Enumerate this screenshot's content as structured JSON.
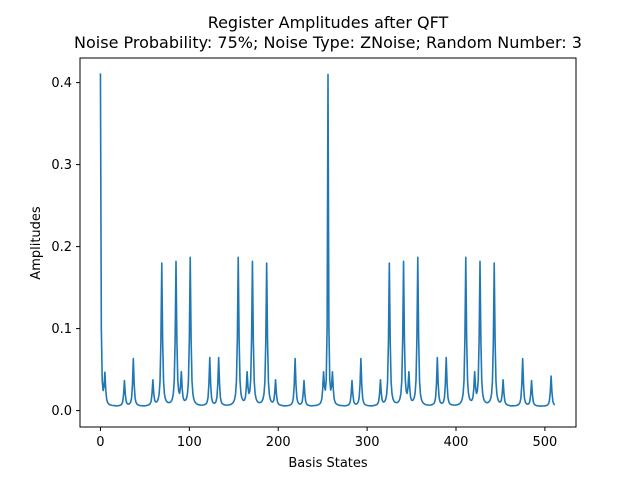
{
  "chart_data": {
    "type": "line",
    "title": "Register Amplitudes after QFT",
    "subtitle": "Noise Probability: 75%; Noise Type: ZNoise; Random Number: 3",
    "xlabel": "Basis States",
    "ylabel": "Amplitudes",
    "xlim": [
      -23,
      535
    ],
    "ylim": [
      -0.02,
      0.43
    ],
    "xticks": [
      0,
      100,
      200,
      300,
      400,
      500
    ],
    "xtick_labels": [
      "0",
      "100",
      "200",
      "300",
      "400",
      "500"
    ],
    "yticks": [
      0.0,
      0.1,
      0.2,
      0.3,
      0.4
    ],
    "ytick_labels": [
      "0.0",
      "0.1",
      "0.2",
      "0.3",
      "0.4"
    ],
    "grid": false,
    "legend": "none",
    "n_points": 512,
    "baseline": 0.005,
    "series": [
      {
        "color": "#1f77b4",
        "peaks": [
          {
            "x": 0,
            "y": 0.41
          },
          {
            "x": 5,
            "y": 0.042
          },
          {
            "x": 27,
            "y": 0.036
          },
          {
            "x": 37,
            "y": 0.063
          },
          {
            "x": 59,
            "y": 0.036
          },
          {
            "x": 69,
            "y": 0.179
          },
          {
            "x": 85,
            "y": 0.18
          },
          {
            "x": 91,
            "y": 0.042
          },
          {
            "x": 101,
            "y": 0.186
          },
          {
            "x": 123,
            "y": 0.064
          },
          {
            "x": 133,
            "y": 0.064
          },
          {
            "x": 155,
            "y": 0.186
          },
          {
            "x": 165,
            "y": 0.042
          },
          {
            "x": 171,
            "y": 0.18
          },
          {
            "x": 187,
            "y": 0.179
          },
          {
            "x": 197,
            "y": 0.036
          },
          {
            "x": 219,
            "y": 0.063
          },
          {
            "x": 229,
            "y": 0.036
          },
          {
            "x": 251,
            "y": 0.042
          },
          {
            "x": 256,
            "y": 0.41
          },
          {
            "x": 261,
            "y": 0.042
          },
          {
            "x": 283,
            "y": 0.036
          },
          {
            "x": 293,
            "y": 0.063
          },
          {
            "x": 315,
            "y": 0.036
          },
          {
            "x": 325,
            "y": 0.179
          },
          {
            "x": 341,
            "y": 0.18
          },
          {
            "x": 347,
            "y": 0.042
          },
          {
            "x": 357,
            "y": 0.186
          },
          {
            "x": 379,
            "y": 0.064
          },
          {
            "x": 389,
            "y": 0.064
          },
          {
            "x": 411,
            "y": 0.186
          },
          {
            "x": 421,
            "y": 0.042
          },
          {
            "x": 427,
            "y": 0.18
          },
          {
            "x": 443,
            "y": 0.179
          },
          {
            "x": 453,
            "y": 0.036
          },
          {
            "x": 475,
            "y": 0.063
          },
          {
            "x": 485,
            "y": 0.036
          },
          {
            "x": 507,
            "y": 0.042
          }
        ]
      }
    ]
  }
}
